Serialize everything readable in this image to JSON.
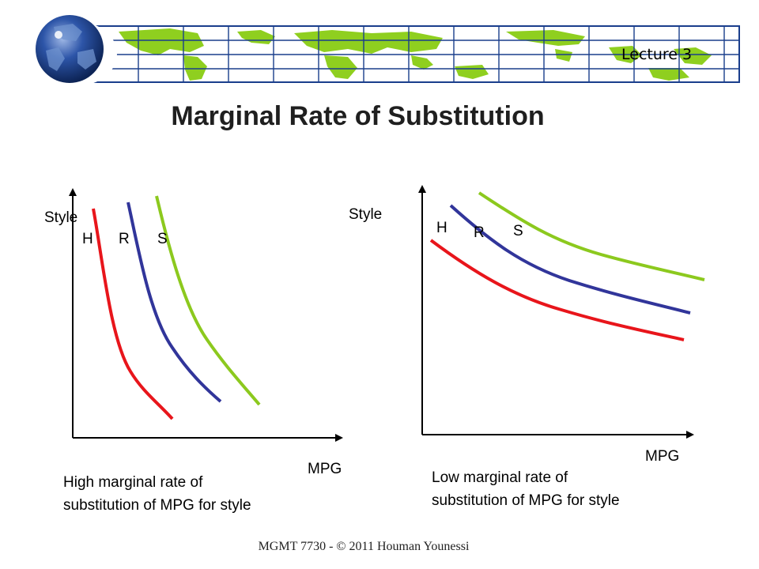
{
  "header": {
    "lecture": "Lecture 3"
  },
  "title": "Marginal Rate of Substitution",
  "colors": {
    "H": "#e8151b",
    "R": "#31359a",
    "S": "#8cc91e",
    "globe": "#1b3f8a",
    "map_land": "#8fcf1f",
    "map_grid": "#1a3e8c"
  },
  "panels": [
    {
      "id": "left",
      "y_axis_label": "Style",
      "x_axis_label": "MPG",
      "curve_labels": [
        "H",
        "R",
        "S"
      ],
      "caption_lines": [
        "High marginal rate of",
        "substitution of MPG for style"
      ]
    },
    {
      "id": "right",
      "y_axis_label": "Style",
      "x_axis_label": "MPG",
      "curve_labels": [
        "H",
        "R",
        "S"
      ],
      "caption_lines": [
        "Low marginal rate of",
        "substitution of MPG for style"
      ]
    }
  ],
  "footer": "MGMT 7730 - © 2011 Houman Younessi"
}
